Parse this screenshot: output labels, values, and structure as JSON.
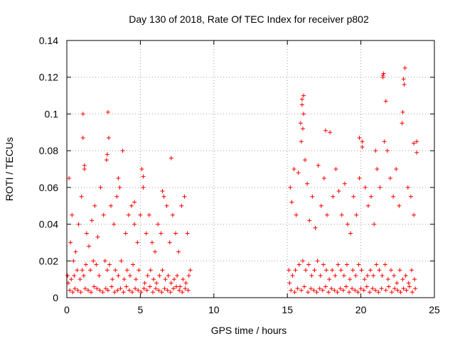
{
  "chart_data": {
    "type": "scatter",
    "title": "Day 130 of 2018, Rate Of TEC Index for receiver p802",
    "xlabel": "GPS time / hours",
    "ylabel": "ROTI / TECUs",
    "xlim": [
      0,
      25
    ],
    "ylim": [
      0,
      0.14
    ],
    "xticks": [
      "0",
      "5",
      "10",
      "15",
      "20",
      "25"
    ],
    "yticks": [
      "0",
      "0.02",
      "0.04",
      "0.06",
      "0.08",
      "0.1",
      "0.12",
      "0.14"
    ],
    "grid": true,
    "marker": "plus",
    "color": "#ff0000",
    "series": [
      {
        "x": [
          0.05,
          0.15,
          0.25,
          0.35,
          0.45,
          0.6,
          0.8,
          1.0,
          1.1,
          1.2,
          1.35,
          1.5,
          1.7,
          1.9,
          2.1,
          2.3,
          2.5,
          2.7,
          2.85,
          3.0,
          3.2,
          3.4,
          3.6,
          3.8,
          4.0,
          4.2,
          4.4,
          4.6,
          4.8,
          5.0,
          5.1,
          5.2,
          5.4,
          5.6,
          5.8,
          6.0,
          6.2,
          6.4,
          6.6,
          6.8,
          7.0,
          7.2,
          7.4,
          7.6,
          7.8,
          8.0,
          8.2,
          8.4,
          0.1,
          0.3,
          0.5,
          0.7,
          0.9,
          1.05,
          1.15,
          1.3,
          1.6,
          1.8,
          2.0,
          2.2,
          2.6,
          2.75,
          2.9,
          3.1,
          3.3,
          3.5,
          3.7,
          3.9,
          4.1,
          4.3,
          4.5,
          4.7,
          4.9,
          5.3,
          5.5,
          5.7,
          5.9,
          6.1,
          6.3,
          6.5,
          6.7,
          6.9,
          7.1,
          7.3,
          7.5,
          7.7,
          7.9,
          8.1,
          8.3,
          0.2,
          0.4,
          0.55,
          0.75,
          0.95,
          1.25,
          1.45,
          1.65,
          1.85,
          2.05,
          2.25,
          2.45,
          2.65,
          2.8,
          3.05,
          3.25,
          3.45,
          3.65,
          3.85,
          4.05,
          4.25,
          4.45,
          4.65,
          4.85,
          5.05,
          5.25,
          5.45,
          5.65,
          5.85,
          6.05,
          6.25,
          6.45,
          6.65,
          6.85,
          7.05,
          7.25,
          7.45,
          7.65,
          7.85,
          8.05,
          8.25,
          1.1,
          2.8,
          7.1,
          1.2,
          2.75,
          3.5,
          4.6,
          5.2,
          6.5,
          15.1,
          15.2,
          15.3,
          15.45,
          15.6,
          15.75,
          15.9,
          16.0,
          16.1,
          16.2,
          16.35,
          16.5,
          16.7,
          16.9,
          17.1,
          17.3,
          17.5,
          17.7,
          17.9,
          18.1,
          18.3,
          18.5,
          18.7,
          18.9,
          19.1,
          19.3,
          19.5,
          19.7,
          19.9,
          20.1,
          20.3,
          20.5,
          20.7,
          20.9,
          21.1,
          21.3,
          21.5,
          21.6,
          21.8,
          22.0,
          22.2,
          22.4,
          22.6,
          22.8,
          23.0,
          23.2,
          23.4,
          23.6,
          23.8,
          15.15,
          15.35,
          15.55,
          15.8,
          16.05,
          16.25,
          16.45,
          16.65,
          16.85,
          17.05,
          17.25,
          17.45,
          17.65,
          17.85,
          18.05,
          18.25,
          18.45,
          18.65,
          18.85,
          19.05,
          19.25,
          19.45,
          19.65,
          19.85,
          20.05,
          20.25,
          20.45,
          20.65,
          20.85,
          21.05,
          21.25,
          21.45,
          21.65,
          21.85,
          22.05,
          22.25,
          22.45,
          22.65,
          22.85,
          23.05,
          23.25,
          23.45,
          23.65,
          15.25,
          15.5,
          15.7,
          15.95,
          16.15,
          16.4,
          16.6,
          16.8,
          17.0,
          17.2,
          17.4,
          17.6,
          17.8,
          18.0,
          18.2,
          18.4,
          18.6,
          18.8,
          19.0,
          19.2,
          19.4,
          19.6,
          19.8,
          20.0,
          20.2,
          20.4,
          20.6,
          20.8,
          21.0,
          21.2,
          21.4,
          21.7,
          21.9,
          22.1,
          22.3,
          22.5,
          22.7,
          22.9,
          23.1,
          23.3,
          23.5,
          23.7,
          16.0,
          16.1,
          16.05,
          15.95,
          21.5,
          21.55,
          22.9,
          22.95,
          22.85,
          21.7,
          23.6,
          23.8,
          17.6,
          19.9,
          20.1,
          21.0
        ],
        "y": [
          0.012,
          0.065,
          0.03,
          0.045,
          0.02,
          0.025,
          0.04,
          0.055,
          0.087,
          0.07,
          0.035,
          0.028,
          0.042,
          0.05,
          0.033,
          0.06,
          0.045,
          0.075,
          0.087,
          0.05,
          0.04,
          0.055,
          0.06,
          0.08,
          0.035,
          0.045,
          0.05,
          0.04,
          0.03,
          0.045,
          0.07,
          0.06,
          0.035,
          0.045,
          0.03,
          0.025,
          0.04,
          0.035,
          0.055,
          0.05,
          0.03,
          0.045,
          0.035,
          0.025,
          0.05,
          0.055,
          0.035,
          0.015,
          0.008,
          0.01,
          0.012,
          0.015,
          0.01,
          0.015,
          0.012,
          0.018,
          0.015,
          0.02,
          0.018,
          0.012,
          0.02,
          0.015,
          0.018,
          0.01,
          0.015,
          0.012,
          0.02,
          0.01,
          0.015,
          0.012,
          0.018,
          0.01,
          0.015,
          0.008,
          0.012,
          0.015,
          0.01,
          0.008,
          0.012,
          0.015,
          0.01,
          0.012,
          0.008,
          0.01,
          0.012,
          0.006,
          0.01,
          0.008,
          0.012,
          0.004,
          0.003,
          0.005,
          0.004,
          0.003,
          0.005,
          0.004,
          0.003,
          0.006,
          0.005,
          0.004,
          0.003,
          0.005,
          0.004,
          0.006,
          0.003,
          0.004,
          0.005,
          0.003,
          0.006,
          0.004,
          0.003,
          0.005,
          0.004,
          0.003,
          0.005,
          0.004,
          0.006,
          0.003,
          0.005,
          0.004,
          0.003,
          0.005,
          0.004,
          0.003,
          0.005,
          0.006,
          0.004,
          0.003,
          0.005,
          0.004,
          0.1,
          0.101,
          0.076,
          0.072,
          0.078,
          0.065,
          0.052,
          0.066,
          0.058,
          0.015,
          0.06,
          0.052,
          0.07,
          0.045,
          0.068,
          0.095,
          0.105,
          0.11,
          0.075,
          0.062,
          0.042,
          0.055,
          0.038,
          0.072,
          0.05,
          0.065,
          0.045,
          0.09,
          0.055,
          0.07,
          0.058,
          0.045,
          0.062,
          0.04,
          0.035,
          0.055,
          0.045,
          0.065,
          0.085,
          0.06,
          0.05,
          0.055,
          0.04,
          0.07,
          0.06,
          0.121,
          0.085,
          0.08,
          0.065,
          0.055,
          0.07,
          0.05,
          0.095,
          0.125,
          0.06,
          0.055,
          0.045,
          0.085,
          0.008,
          0.012,
          0.015,
          0.018,
          0.02,
          0.015,
          0.018,
          0.012,
          0.015,
          0.02,
          0.012,
          0.018,
          0.015,
          0.01,
          0.015,
          0.012,
          0.018,
          0.015,
          0.012,
          0.018,
          0.01,
          0.015,
          0.012,
          0.018,
          0.015,
          0.01,
          0.012,
          0.015,
          0.012,
          0.018,
          0.015,
          0.012,
          0.018,
          0.01,
          0.015,
          0.012,
          0.008,
          0.015,
          0.01,
          0.012,
          0.008,
          0.015,
          0.01,
          0.004,
          0.003,
          0.005,
          0.004,
          0.006,
          0.003,
          0.005,
          0.004,
          0.003,
          0.005,
          0.004,
          0.006,
          0.003,
          0.005,
          0.004,
          0.003,
          0.005,
          0.004,
          0.006,
          0.003,
          0.005,
          0.004,
          0.003,
          0.005,
          0.004,
          0.006,
          0.003,
          0.005,
          0.004,
          0.003,
          0.005,
          0.004,
          0.006,
          0.003,
          0.005,
          0.004,
          0.003,
          0.005,
          0.004,
          0.006,
          0.003,
          0.005,
          0.108,
          0.1,
          0.092,
          0.085,
          0.12,
          0.122,
          0.119,
          0.116,
          0.101,
          0.107,
          0.084,
          0.079,
          0.091,
          0.087,
          0.082,
          0.08
        ]
      }
    ]
  }
}
